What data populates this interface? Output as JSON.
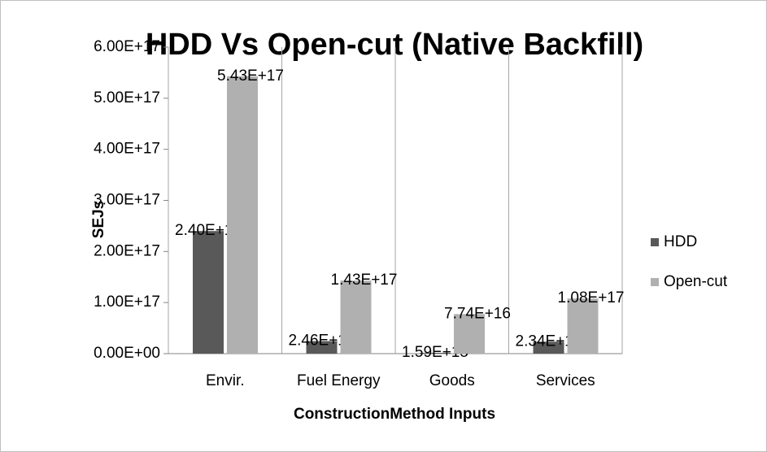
{
  "chart_data": {
    "type": "bar",
    "title": "HDD Vs Open-cut (Native Backfill)",
    "x_label": "ConstructionMethod Inputs",
    "y_label": "SEJs",
    "categories": [
      "Envir.",
      "Fuel Energy",
      "Goods",
      "Services"
    ],
    "series": [
      {
        "name": "HDD",
        "color": "#595959",
        "values": [
          2.4e+17,
          2.46e+16,
          1590000000000000.0,
          2.34e+16
        ],
        "value_labels": [
          "2.40E+17",
          "2.46E+16",
          "1.59E+15",
          "2.34E+16"
        ]
      },
      {
        "name": "Open-cut",
        "color": "#b0b0b0",
        "values": [
          5.43e+17,
          1.43e+17,
          7.74e+16,
          1.08e+17
        ],
        "value_labels": [
          "5.43E+17",
          "1.43E+17",
          "7.74E+16",
          "1.08E+17"
        ]
      }
    ],
    "ylim": [
      0,
      6e+17
    ],
    "yticks": [
      {
        "value": 0,
        "label": "0.00E+00"
      },
      {
        "value": 1e+17,
        "label": "1.00E+17"
      },
      {
        "value": 2e+17,
        "label": "2.00E+17"
      },
      {
        "value": 3e+17,
        "label": "3.00E+17"
      },
      {
        "value": 4e+17,
        "label": "4.00E+17"
      },
      {
        "value": 5e+17,
        "label": "5.00E+17"
      },
      {
        "value": 6e+17,
        "label": "6.00E+17"
      }
    ],
    "legend": "right"
  }
}
